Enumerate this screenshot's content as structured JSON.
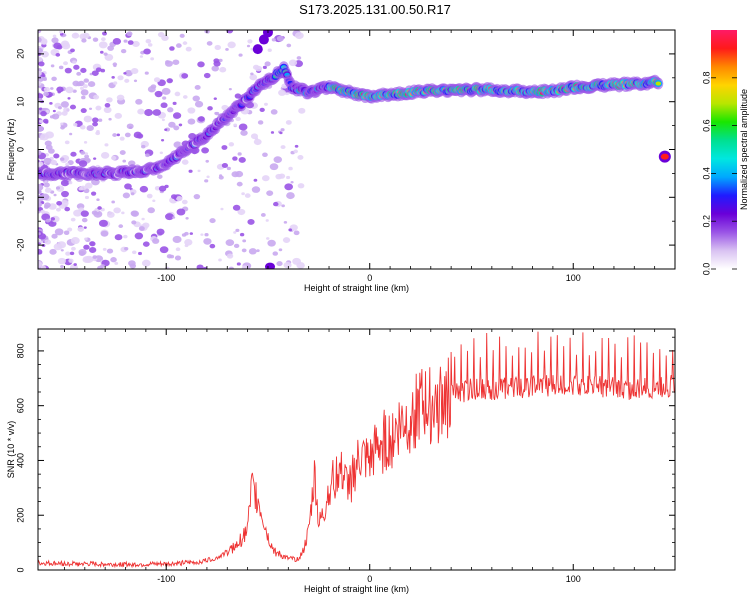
{
  "title": "S173.2025.131.00.50.R17",
  "chart_data": [
    {
      "type": "heatmap",
      "xlabel": "Height of straight line (km)",
      "ylabel": "Frequency (Hz)",
      "xlim": [
        -163,
        150
      ],
      "ylim": [
        -25,
        25
      ],
      "xticks": [
        -100,
        0,
        100
      ],
      "yticks": [
        -20,
        -10,
        0,
        10,
        20
      ],
      "colorbar": {
        "label": "Normalized spectral amplitude",
        "range": [
          0,
          1
        ],
        "ticks": [
          "0.0",
          "0.2",
          "0.4",
          "0.6",
          "0.8"
        ],
        "colors": [
          "#ffffff",
          "#d9c2f2",
          "#9a54e6",
          "#6a00d8",
          "#1f1bff",
          "#00a8ff",
          "#00e7e0",
          "#00e090",
          "#19e600",
          "#b8e600",
          "#ffd400",
          "#ff8800",
          "#ff1a1a",
          "#ff1a66"
        ]
      },
      "ridge": {
        "x": [
          -163,
          -140,
          -125,
          -110,
          -100,
          -90,
          -80,
          -70,
          -62,
          -55,
          -48,
          -42,
          -38,
          -30,
          -20,
          -10,
          0,
          20,
          40,
          60,
          80,
          95,
          100,
          120,
          140
        ],
        "y": [
          -5,
          -5,
          -5,
          -4.5,
          -3,
          0,
          3,
          7,
          10,
          13,
          15,
          17,
          13,
          12,
          13,
          12,
          11,
          12,
          12.5,
          12.5,
          12,
          12.5,
          13,
          13.5,
          14
        ]
      },
      "isolated_peak": {
        "x": 145,
        "y": -1.5
      }
    },
    {
      "type": "line",
      "xlabel": "Height of straight line (km)",
      "ylabel": "SNR (10 * v/v)",
      "xlim": [
        -163,
        150
      ],
      "ylim": [
        0,
        880
      ],
      "xticks": [
        -100,
        0,
        100
      ],
      "yticks": [
        0,
        200,
        400,
        600,
        800
      ],
      "color": "#ee3333",
      "x": [
        -163,
        -140,
        -120,
        -100,
        -85,
        -75,
        -65,
        -60,
        -58,
        -55,
        -52,
        -50,
        -47,
        -44,
        -40,
        -36,
        -33,
        -30,
        -27,
        -25,
        -22,
        -20,
        -15,
        -10,
        -5,
        0,
        5,
        10,
        15,
        20,
        25,
        30,
        40,
        50,
        60,
        70,
        80,
        90,
        100,
        110,
        120,
        130,
        140,
        150
      ],
      "y": [
        25,
        22,
        20,
        22,
        28,
        45,
        90,
        150,
        300,
        260,
        180,
        120,
        70,
        55,
        40,
        40,
        60,
        140,
        350,
        160,
        220,
        310,
        360,
        300,
        410,
        390,
        460,
        480,
        530,
        560,
        590,
        600,
        640,
        660,
        660,
        665,
        670,
        675,
        680,
        670,
        665,
        660,
        665,
        675
      ]
    }
  ]
}
